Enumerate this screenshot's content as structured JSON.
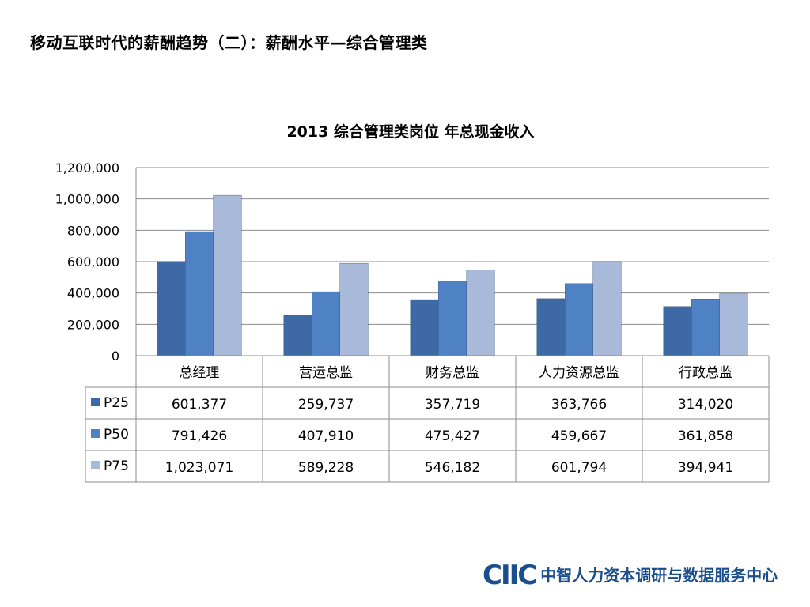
{
  "page": {
    "title": "移动互联时代的薪酬趋势（二）：薪酬水平—综合管理类"
  },
  "logo": {
    "mark": "CIIC",
    "text": "中智人力资本调研与数据服务中心"
  },
  "colors": {
    "P25": "#3d6aa5",
    "P50": "#4f82c4",
    "P75": "#a9b9d9",
    "grid": "#8c8c8c",
    "table_border": "#8c8c8c"
  },
  "chart_data": {
    "type": "bar",
    "title": "2013 综合管理类岗位 年总现金收入",
    "categories": [
      "总经理",
      "营运总监",
      "财务总监",
      "人力资源总监",
      "行政总监"
    ],
    "series": [
      {
        "name": "P25",
        "values": [
          601377,
          259737,
          357719,
          363766,
          314020
        ],
        "labels": [
          "601,377",
          "259,737",
          "357,719",
          "363,766",
          "314,020"
        ]
      },
      {
        "name": "P50",
        "values": [
          791426,
          407910,
          475427,
          459667,
          361858
        ],
        "labels": [
          "791,426",
          "407,910",
          "475,427",
          "459,667",
          "361,858"
        ]
      },
      {
        "name": "P75",
        "values": [
          1023071,
          589228,
          546182,
          601794,
          394941
        ],
        "labels": [
          "1,023,071",
          "589,228",
          "546,182",
          "601,794",
          "394,941"
        ]
      }
    ],
    "ylim": [
      0,
      1200000
    ],
    "yticks": [
      0,
      200000,
      400000,
      600000,
      800000,
      1000000,
      1200000
    ],
    "ytick_labels": [
      "0",
      "200,000",
      "400,000",
      "600,000",
      "800,000",
      "1,000,000",
      "1,200,000"
    ],
    "grid": true,
    "legend": "data-table"
  }
}
